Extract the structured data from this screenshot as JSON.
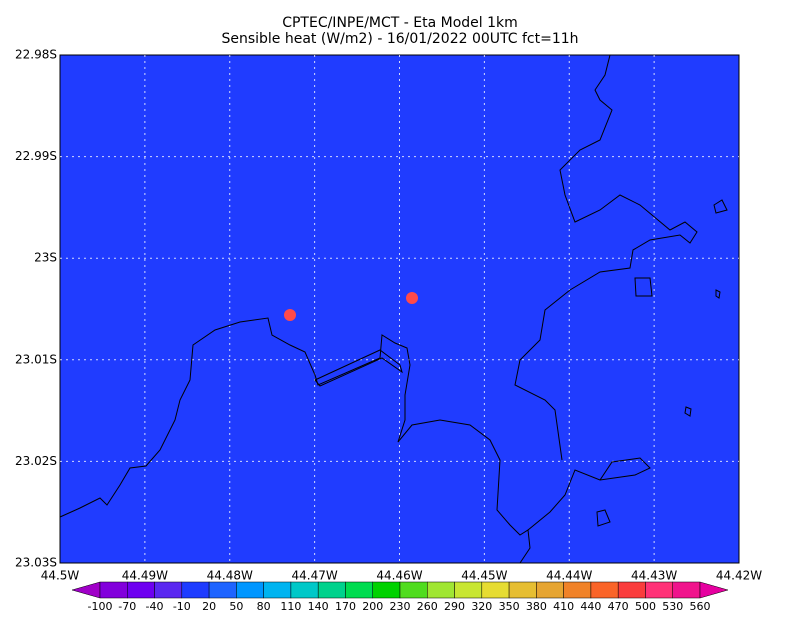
{
  "header": {
    "title": "CPTEC/INPE/MCT -  Eta Model 1km",
    "subtitle": "Sensible heat (W/m2) - 16/01/2022 00UTC fct=11h"
  },
  "lat_ticks": [
    "22.98S",
    "22.99S",
    "23S",
    "23.01S",
    "23.02S",
    "23.03S"
  ],
  "lon_ticks": [
    "44.5W",
    "44.49W",
    "44.48W",
    "44.47W",
    "44.46W",
    "44.45W",
    "44.44W",
    "44.43W",
    "44.42W"
  ],
  "colorbar": {
    "labels": [
      -100,
      -70,
      -40,
      -10,
      20,
      50,
      80,
      110,
      140,
      170,
      200,
      230,
      260,
      290,
      320,
      350,
      380,
      410,
      440,
      470,
      500,
      530,
      560
    ],
    "colors": [
      "#a000c8",
      "#8200dc",
      "#6e00f0",
      "#5a28f0",
      "#1e3cff",
      "#1e64ff",
      "#0096ff",
      "#00b4f0",
      "#00c8c8",
      "#00d28c",
      "#00dc50",
      "#00d200",
      "#50dc1e",
      "#a0e632",
      "#c8e632",
      "#e6dc32",
      "#e6be32",
      "#e6a532",
      "#f08228",
      "#fa6428",
      "#fa3c3c",
      "#ff3278",
      "#f0148c",
      "#e600a0"
    ]
  }
}
